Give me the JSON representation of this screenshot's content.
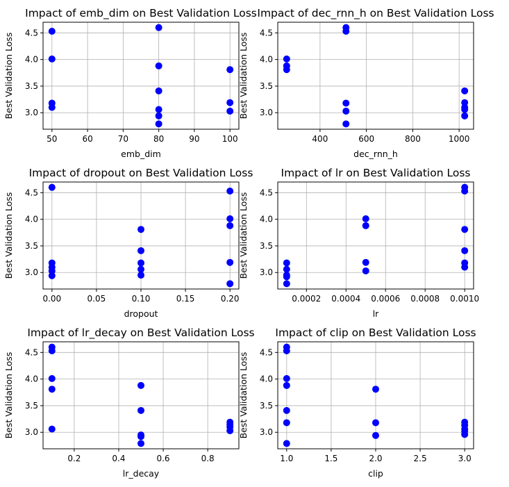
{
  "figure": {
    "marker_color": "#0000ff"
  },
  "chart_data": [
    {
      "type": "scatter",
      "title": "Impact of emb_dim on Best Validation Loss",
      "xlabel": "emb_dim",
      "ylabel": "Best Validation Loss",
      "xlim": [
        47.5,
        102.5
      ],
      "ylim": [
        2.69,
        4.7
      ],
      "xticks": [
        50,
        60,
        70,
        80,
        90,
        100
      ],
      "xtick_labels": [
        "50",
        "60",
        "70",
        "80",
        "90",
        "100"
      ],
      "yticks": [
        3.0,
        3.5,
        4.0,
        4.5
      ],
      "ytick_labels": [
        "3.0",
        "3.5",
        "4.0",
        "4.5"
      ],
      "grid": true,
      "points": [
        {
          "x": 50,
          "y": 4.53
        },
        {
          "x": 50,
          "y": 4.01
        },
        {
          "x": 50,
          "y": 3.18
        },
        {
          "x": 50,
          "y": 3.1
        },
        {
          "x": 80,
          "y": 4.6
        },
        {
          "x": 80,
          "y": 3.88
        },
        {
          "x": 80,
          "y": 3.41
        },
        {
          "x": 80,
          "y": 3.06
        },
        {
          "x": 80,
          "y": 2.94
        },
        {
          "x": 80,
          "y": 2.79
        },
        {
          "x": 100,
          "y": 3.81
        },
        {
          "x": 100,
          "y": 3.19
        },
        {
          "x": 100,
          "y": 3.03
        }
      ]
    },
    {
      "type": "scatter",
      "title": "Impact of dec_rnn_h on Best Validation Loss",
      "xlabel": "dec_rnn_h",
      "ylabel": "Best Validation Loss",
      "xlim": [
        217.6,
        1062.4
      ],
      "ylim": [
        2.69,
        4.7
      ],
      "xticks": [
        400,
        600,
        800,
        1000
      ],
      "xtick_labels": [
        "400",
        "600",
        "800",
        "1000"
      ],
      "yticks": [
        3.0,
        3.5,
        4.0,
        4.5
      ],
      "ytick_labels": [
        "3.0",
        "3.5",
        "4.0",
        "4.5"
      ],
      "grid": true,
      "points": [
        {
          "x": 256,
          "y": 4.01
        },
        {
          "x": 256,
          "y": 3.88
        },
        {
          "x": 256,
          "y": 3.81
        },
        {
          "x": 512,
          "y": 4.6
        },
        {
          "x": 512,
          "y": 4.53
        },
        {
          "x": 512,
          "y": 3.18
        },
        {
          "x": 512,
          "y": 3.03
        },
        {
          "x": 512,
          "y": 2.79
        },
        {
          "x": 1024,
          "y": 3.41
        },
        {
          "x": 1024,
          "y": 3.19
        },
        {
          "x": 1024,
          "y": 3.1
        },
        {
          "x": 1024,
          "y": 3.06
        },
        {
          "x": 1024,
          "y": 2.94
        }
      ]
    },
    {
      "type": "scatter",
      "title": "Impact of dropout on Best Validation Loss",
      "xlabel": "dropout",
      "ylabel": "Best Validation Loss",
      "xlim": [
        -0.01,
        0.21
      ],
      "ylim": [
        2.69,
        4.7
      ],
      "xticks": [
        0.0,
        0.05,
        0.1,
        0.15,
        0.2
      ],
      "xtick_labels": [
        "0.00",
        "0.05",
        "0.10",
        "0.15",
        "0.20"
      ],
      "yticks": [
        3.0,
        3.5,
        4.0,
        4.5
      ],
      "ytick_labels": [
        "3.0",
        "3.5",
        "4.0",
        "4.5"
      ],
      "grid": true,
      "points": [
        {
          "x": 0.0,
          "y": 4.6
        },
        {
          "x": 0.0,
          "y": 3.18
        },
        {
          "x": 0.0,
          "y": 3.1
        },
        {
          "x": 0.0,
          "y": 3.03
        },
        {
          "x": 0.0,
          "y": 2.94
        },
        {
          "x": 0.1,
          "y": 3.81
        },
        {
          "x": 0.1,
          "y": 3.41
        },
        {
          "x": 0.1,
          "y": 3.18
        },
        {
          "x": 0.1,
          "y": 3.06
        },
        {
          "x": 0.1,
          "y": 2.95
        },
        {
          "x": 0.2,
          "y": 4.53
        },
        {
          "x": 0.2,
          "y": 4.01
        },
        {
          "x": 0.2,
          "y": 3.88
        },
        {
          "x": 0.2,
          "y": 3.19
        },
        {
          "x": 0.2,
          "y": 2.79
        }
      ]
    },
    {
      "type": "scatter",
      "title": "Impact of lr on Best Validation Loss",
      "xlabel": "lr",
      "ylabel": "Best Validation Loss",
      "xlim": [
        5.5e-05,
        0.001045
      ],
      "ylim": [
        2.69,
        4.7
      ],
      "xticks": [
        0.0002,
        0.0004,
        0.0006,
        0.0008,
        0.001
      ],
      "xtick_labels": [
        "0.0002",
        "0.0004",
        "0.0006",
        "0.0008",
        "0.0010"
      ],
      "yticks": [
        3.0,
        3.5,
        4.0,
        4.5
      ],
      "ytick_labels": [
        "3.0",
        "3.5",
        "4.0",
        "4.5"
      ],
      "grid": true,
      "points": [
        {
          "x": 0.0001,
          "y": 3.18
        },
        {
          "x": 0.0001,
          "y": 3.06
        },
        {
          "x": 0.0001,
          "y": 2.95
        },
        {
          "x": 0.0001,
          "y": 2.92
        },
        {
          "x": 0.0001,
          "y": 2.79
        },
        {
          "x": 0.0005,
          "y": 4.01
        },
        {
          "x": 0.0005,
          "y": 3.88
        },
        {
          "x": 0.0005,
          "y": 3.19
        },
        {
          "x": 0.0005,
          "y": 3.03
        },
        {
          "x": 0.001,
          "y": 4.6
        },
        {
          "x": 0.001,
          "y": 4.53
        },
        {
          "x": 0.001,
          "y": 3.81
        },
        {
          "x": 0.001,
          "y": 3.41
        },
        {
          "x": 0.001,
          "y": 3.18
        },
        {
          "x": 0.001,
          "y": 3.1
        }
      ]
    },
    {
      "type": "scatter",
      "title": "Impact of lr_decay on Best Validation Loss",
      "xlabel": "lr_decay",
      "ylabel": "Best Validation Loss",
      "xlim": [
        0.06,
        0.94
      ],
      "ylim": [
        2.69,
        4.7
      ],
      "xticks": [
        0.2,
        0.4,
        0.6,
        0.8
      ],
      "xtick_labels": [
        "0.2",
        "0.4",
        "0.6",
        "0.8"
      ],
      "yticks": [
        3.0,
        3.5,
        4.0,
        4.5
      ],
      "ytick_labels": [
        "3.0",
        "3.5",
        "4.0",
        "4.5"
      ],
      "grid": true,
      "points": [
        {
          "x": 0.1,
          "y": 4.6
        },
        {
          "x": 0.1,
          "y": 4.53
        },
        {
          "x": 0.1,
          "y": 4.01
        },
        {
          "x": 0.1,
          "y": 3.81
        },
        {
          "x": 0.1,
          "y": 3.06
        },
        {
          "x": 0.5,
          "y": 3.88
        },
        {
          "x": 0.5,
          "y": 3.41
        },
        {
          "x": 0.5,
          "y": 2.95
        },
        {
          "x": 0.5,
          "y": 2.92
        },
        {
          "x": 0.5,
          "y": 2.79
        },
        {
          "x": 0.9,
          "y": 3.19
        },
        {
          "x": 0.9,
          "y": 3.14
        },
        {
          "x": 0.9,
          "y": 3.1
        },
        {
          "x": 0.9,
          "y": 3.03
        }
      ]
    },
    {
      "type": "scatter",
      "title": "Impact of clip on Best Validation Loss",
      "xlabel": "clip",
      "ylabel": "Best Validation Loss",
      "xlim": [
        0.9,
        3.1
      ],
      "ylim": [
        2.69,
        4.7
      ],
      "xticks": [
        1.0,
        1.5,
        2.0,
        2.5,
        3.0
      ],
      "xtick_labels": [
        "1.0",
        "1.5",
        "2.0",
        "2.5",
        "3.0"
      ],
      "yticks": [
        3.0,
        3.5,
        4.0,
        4.5
      ],
      "ytick_labels": [
        "3.0",
        "3.5",
        "4.0",
        "4.5"
      ],
      "grid": true,
      "points": [
        {
          "x": 1.0,
          "y": 4.6
        },
        {
          "x": 1.0,
          "y": 4.53
        },
        {
          "x": 1.0,
          "y": 4.01
        },
        {
          "x": 1.0,
          "y": 3.88
        },
        {
          "x": 1.0,
          "y": 3.41
        },
        {
          "x": 1.0,
          "y": 3.18
        },
        {
          "x": 1.0,
          "y": 2.79
        },
        {
          "x": 2.0,
          "y": 3.81
        },
        {
          "x": 2.0,
          "y": 3.18
        },
        {
          "x": 2.0,
          "y": 2.94
        },
        {
          "x": 3.0,
          "y": 3.19
        },
        {
          "x": 3.0,
          "y": 3.13
        },
        {
          "x": 3.0,
          "y": 3.06
        },
        {
          "x": 3.0,
          "y": 3.02
        },
        {
          "x": 3.0,
          "y": 2.96
        }
      ]
    }
  ]
}
